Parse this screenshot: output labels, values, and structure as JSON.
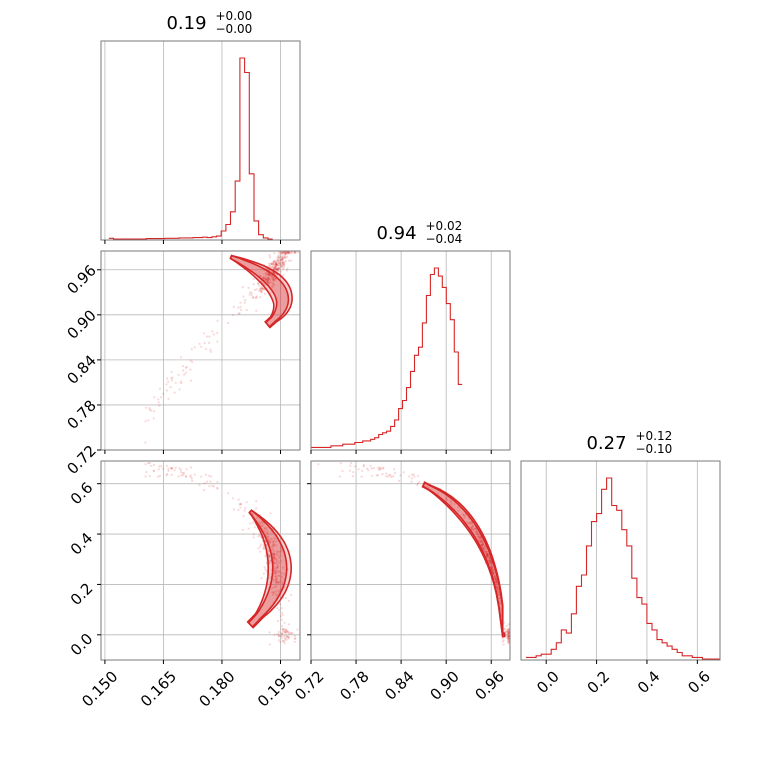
{
  "chart_data": {
    "type": "corner",
    "color": "#d62728",
    "parameters": [
      {
        "title": "0.19",
        "title_plus": "+0.00",
        "title_minus": "−0.00",
        "range": [
          0.149,
          0.2
        ],
        "ticks": [
          0.15,
          0.165,
          0.18,
          0.195
        ],
        "tick_labels": [
          "0.150",
          "0.165",
          "0.180",
          "0.195"
        ],
        "hist_edges_start": 0.151,
        "hist_bin_width": 0.0012,
        "hist": [
          2,
          0,
          0,
          0,
          0,
          0,
          0,
          0,
          1,
          1,
          1,
          1,
          2,
          2,
          2,
          3,
          3,
          3,
          4,
          4,
          5,
          4,
          6,
          8,
          22,
          40,
          75,
          160,
          500,
          460,
          180,
          50,
          12,
          3,
          0
        ]
      },
      {
        "title": "0.94",
        "title_plus": "+0.02",
        "title_minus": "−0.04",
        "range": [
          0.72,
          0.985
        ],
        "ticks": [
          0.72,
          0.78,
          0.84,
          0.9,
          0.96
        ],
        "tick_labels": [
          "0.72",
          "0.78",
          "0.84",
          "0.90",
          "0.96"
        ],
        "hist_edges_start": 0.72,
        "hist_bin_width": 0.0053,
        "hist": [
          1,
          1,
          1,
          1,
          1,
          2,
          2,
          2,
          3,
          3,
          3,
          4,
          4,
          5,
          5,
          6,
          7,
          9,
          10,
          11,
          14,
          18,
          25,
          30,
          38,
          48,
          58,
          63,
          78,
          95,
          108,
          112,
          107,
          100,
          90,
          80,
          60,
          40
        ]
      },
      {
        "title": "0.27",
        "title_plus": "+0.12",
        "title_minus": "−0.10",
        "range": [
          -0.1,
          0.69
        ],
        "ticks": [
          0.0,
          0.2,
          0.4,
          0.6
        ],
        "tick_labels": [
          "0.0",
          "0.2",
          "0.4",
          "0.6"
        ],
        "hist_edges_start": -0.08,
        "hist_bin_width": 0.02,
        "hist": [
          1,
          1,
          2,
          3,
          3,
          6,
          10,
          18,
          16,
          28,
          45,
          52,
          70,
          85,
          90,
          105,
          112,
          95,
          92,
          80,
          70,
          50,
          38,
          34,
          22,
          18,
          12,
          10,
          8,
          6,
          4,
          2,
          2,
          1,
          1,
          0,
          0,
          0,
          0
        ]
      }
    ],
    "y_ticks_row1": [
      0.72,
      0.78,
      0.84,
      0.9,
      0.96
    ],
    "y_tick_labels_row1": [
      "0.72",
      "0.78",
      "0.84",
      "0.90",
      "0.96"
    ],
    "y_ticks_row2": [
      0.0,
      0.2,
      0.4,
      0.6
    ],
    "y_tick_labels_row2": [
      "0.0",
      "0.2",
      "0.4",
      "0.6"
    ],
    "grid": true
  }
}
